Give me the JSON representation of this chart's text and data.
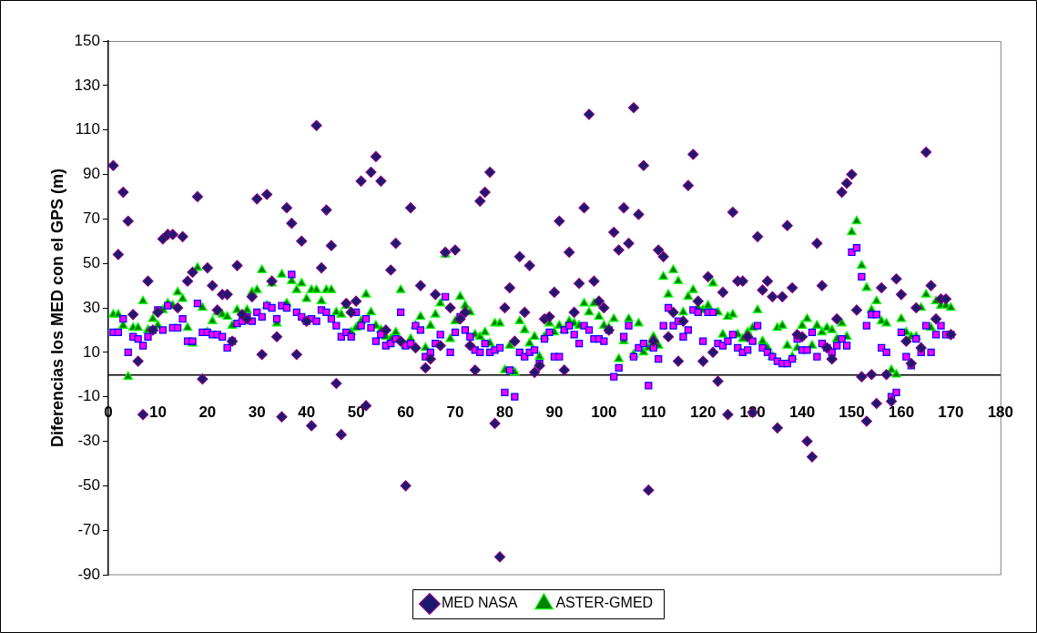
{
  "chart_data": {
    "type": "scatter",
    "ylabel": "Diferencias los MED con el GPS (m)",
    "x": [
      1,
      2,
      3,
      4,
      5,
      6,
      7,
      8,
      9,
      10,
      11,
      12,
      13,
      14,
      15,
      16,
      17,
      18,
      19,
      20,
      21,
      22,
      23,
      24,
      25,
      26,
      27,
      28,
      29,
      30,
      31,
      32,
      33,
      34,
      35,
      36,
      37,
      38,
      39,
      40,
      41,
      42,
      43,
      44,
      45,
      46,
      47,
      48,
      49,
      50,
      51,
      52,
      53,
      54,
      55,
      56,
      57,
      58,
      59,
      60,
      61,
      62,
      63,
      64,
      65,
      66,
      67,
      68,
      69,
      70,
      71,
      72,
      73,
      74,
      75,
      76,
      77,
      78,
      79,
      80,
      81,
      82,
      83,
      84,
      85,
      86,
      87,
      88,
      89,
      90,
      91,
      92,
      93,
      94,
      95,
      96,
      97,
      98,
      99,
      100,
      101,
      102,
      103,
      104,
      105,
      106,
      107,
      108,
      109,
      110,
      111,
      112,
      113,
      114,
      115,
      116,
      117,
      118,
      119,
      120,
      121,
      122,
      123,
      124,
      125,
      126,
      127,
      128,
      129,
      130,
      131,
      132,
      133,
      134,
      135,
      136,
      137,
      138,
      139,
      140,
      141,
      142,
      143,
      144,
      145,
      146,
      147,
      148,
      149,
      150,
      151,
      152,
      153,
      154,
      155,
      156,
      157,
      158,
      159,
      160,
      161,
      162,
      163,
      164,
      165,
      166,
      167,
      168,
      169,
      170
    ],
    "series": [
      {
        "name": "MED NASA",
        "color": "#1a1a6e",
        "marker": "diamond",
        "values": [
          94,
          54,
          82,
          69,
          27,
          6,
          -18,
          42,
          20,
          28,
          61,
          63,
          63,
          30,
          62,
          42,
          46,
          80,
          -2,
          48,
          40,
          29,
          36,
          36,
          15,
          49,
          27,
          25,
          35,
          79,
          9,
          81,
          42,
          17,
          -19,
          75,
          68,
          9,
          60,
          24,
          -23,
          112,
          48,
          74,
          58,
          -4,
          -27,
          32,
          28,
          33,
          87,
          -14,
          91,
          98,
          87,
          20,
          47,
          59,
          15,
          -50,
          75,
          12,
          40,
          3,
          7,
          36,
          13,
          55,
          30,
          56,
          25,
          28,
          13,
          2,
          78,
          82,
          91,
          -22,
          -82,
          30,
          39,
          15,
          53,
          28,
          49,
          1,
          4,
          25,
          26,
          37,
          69,
          2,
          55,
          28,
          41,
          75,
          117,
          42,
          33,
          30,
          20,
          64,
          56,
          75,
          59,
          120,
          72,
          94,
          -52,
          15,
          56,
          53,
          17,
          28,
          6,
          24,
          85,
          99,
          33,
          6,
          44,
          10,
          -3,
          37,
          -18,
          73,
          42,
          42,
          17,
          -17,
          62,
          38,
          42,
          35,
          -24,
          35,
          67,
          39,
          18,
          17,
          -30,
          -37,
          59,
          40,
          12,
          7,
          25,
          82,
          86,
          90,
          29,
          -1,
          -21,
          0,
          -13,
          39,
          0,
          -12,
          43,
          36,
          15,
          5,
          30,
          12,
          100,
          40,
          25,
          34,
          34,
          18
        ]
      },
      {
        "color": "#ff00ff",
        "marker": "square",
        "values": [
          19,
          19,
          25,
          10,
          17,
          16,
          13,
          17,
          20,
          29,
          20,
          31,
          21,
          21,
          25,
          15,
          15,
          32,
          19,
          19,
          18,
          18,
          17,
          12,
          15,
          23,
          24,
          26,
          24,
          28,
          26,
          31,
          30,
          25,
          31,
          30,
          45,
          28,
          26,
          24,
          25,
          24,
          29,
          28,
          25,
          22,
          17,
          19,
          17,
          28,
          22,
          25,
          21,
          15,
          18,
          13,
          14,
          16,
          28,
          13,
          14,
          22,
          20,
          8,
          10,
          14,
          18,
          35,
          10,
          19,
          26,
          20,
          17,
          11,
          10,
          14,
          10,
          11,
          12,
          -8,
          2,
          -10,
          10,
          8,
          10,
          11,
          5,
          16,
          19,
          8,
          8,
          20,
          22,
          18,
          14,
          22,
          20,
          16,
          16,
          15,
          20,
          -1,
          3,
          17,
          22,
          8,
          12,
          14,
          -5,
          12,
          7,
          22,
          30,
          22,
          24,
          17,
          20,
          29,
          28,
          15,
          28,
          28,
          14,
          13,
          15,
          18,
          12,
          10,
          11,
          15,
          22,
          12,
          10,
          8,
          6,
          5,
          5,
          7,
          16,
          11,
          11,
          19,
          8,
          14,
          12,
          10,
          13,
          16,
          13,
          55,
          57,
          44,
          22,
          27,
          27,
          12,
          10,
          -10,
          -8,
          19,
          8,
          4,
          16,
          10,
          22,
          10,
          18,
          22,
          18,
          18
        ]
      },
      {
        "name": "ASTER-GMED",
        "color": "#008000",
        "marker": "triangle",
        "values": [
          27,
          27,
          22,
          -1,
          21,
          21,
          33,
          20,
          25,
          22,
          29,
          32,
          31,
          37,
          34,
          21,
          14,
          48,
          30,
          19,
          24,
          28,
          27,
          26,
          22,
          29,
          null,
          29,
          37,
          38,
          47,
          31,
          41,
          23,
          45,
          32,
          42,
          38,
          41,
          34,
          38,
          38,
          33,
          38,
          38,
          28,
          27,
          31,
          19,
          21,
          24,
          36,
          28,
          22,
          20,
          17,
          16,
          19,
          38,
          13,
          16,
          22,
          26,
          12,
          22,
          27,
          32,
          54,
          16,
          24,
          35,
          31,
          28,
          18,
          17,
          19,
          14,
          23,
          23,
          2,
          13,
          1,
          24,
          20,
          14,
          17,
          8,
          17,
          23,
          19,
          22,
          20,
          24,
          23,
          22,
          32,
          28,
          32,
          26,
          22,
          21,
          25,
          7,
          15,
          25,
          9,
          23,
          10,
          12,
          17,
          13,
          44,
          36,
          47,
          42,
          28,
          35,
          38,
          30,
          29,
          31,
          41,
          28,
          18,
          26,
          27,
          18,
          16,
          19,
          21,
          29,
          15,
          12,
          8,
          21,
          22,
          13,
          8,
          12,
          22,
          25,
          13,
          22,
          19,
          21,
          20,
          16,
          23,
          17,
          64,
          69,
          49,
          39,
          29,
          33,
          24,
          23,
          2,
          0,
          25,
          19,
          17,
          17,
          30,
          36,
          21,
          33,
          31,
          31,
          30
        ]
      }
    ],
    "xlim": [
      0,
      180
    ],
    "xticks": [
      0,
      10,
      20,
      30,
      40,
      50,
      60,
      70,
      80,
      90,
      100,
      110,
      120,
      130,
      140,
      150,
      160,
      170,
      180
    ],
    "ylim": [
      -90,
      150
    ],
    "yticks": [
      -90,
      -70,
      -50,
      -30,
      -10,
      10,
      30,
      50,
      70,
      90,
      110,
      130,
      150
    ],
    "grid": false,
    "legend": "bottom"
  }
}
